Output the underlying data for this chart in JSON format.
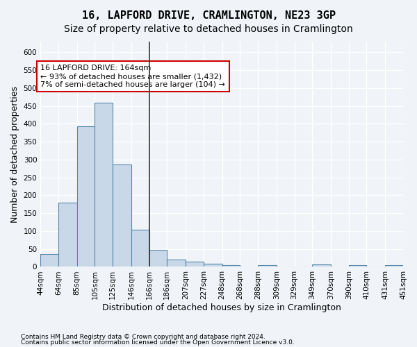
{
  "title": "16, LAPFORD DRIVE, CRAMLINGTON, NE23 3GP",
  "subtitle": "Size of property relative to detached houses in Cramlington",
  "xlabel": "Distribution of detached houses by size in Cramlington",
  "ylabel": "Number of detached properties",
  "footnote1": "Contains HM Land Registry data © Crown copyright and database right 2024.",
  "footnote2": "Contains public sector information licensed under the Open Government Licence v3.0.",
  "annotation_title": "16 LAPFORD DRIVE: 164sqm",
  "annotation_line1": "← 93% of detached houses are smaller (1,432)",
  "annotation_line2": "7% of semi-detached houses are larger (104) →",
  "property_size": 164,
  "bin_edges": [
    44,
    64,
    85,
    105,
    125,
    146,
    166,
    186,
    207,
    227,
    248,
    268,
    288,
    309,
    329,
    349,
    370,
    390,
    410,
    431,
    451
  ],
  "bar_heights": [
    35,
    180,
    393,
    460,
    287,
    103,
    48,
    20,
    14,
    9,
    5,
    0,
    5,
    0,
    0,
    7,
    0,
    4,
    0,
    5
  ],
  "bar_color": "#c8d8e8",
  "bar_edge_color": "#5588aa",
  "highlight_bar_index": 5,
  "highlight_bar_color": "#c8d8e8",
  "vline_color": "#333333",
  "vline_x": 166,
  "annotation_box_color": "#ffffff",
  "annotation_box_edge": "#cc0000",
  "ylim": [
    0,
    630
  ],
  "yticks": [
    0,
    50,
    100,
    150,
    200,
    250,
    300,
    350,
    400,
    450,
    500,
    550,
    600
  ],
  "bg_color": "#f0f4f8",
  "grid_color": "#ffffff",
  "title_fontsize": 11,
  "subtitle_fontsize": 10,
  "axis_label_fontsize": 9,
  "tick_fontsize": 7.5,
  "annotation_fontsize": 8
}
